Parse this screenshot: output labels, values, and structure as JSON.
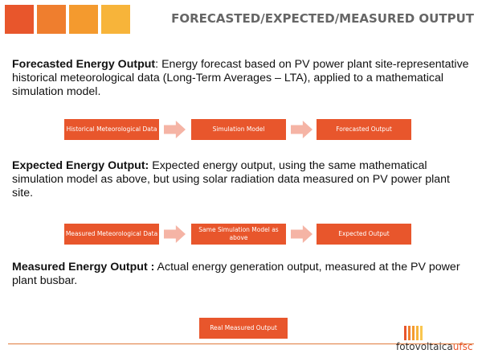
{
  "header": {
    "title": "FORECASTED/EXPECTED/MEASURED OUTPUT",
    "square_colors": [
      "#e8562c",
      "#ef7e2e",
      "#f49a2e",
      "#f7b43a"
    ]
  },
  "sections": [
    {
      "term": "Forecasted Energy Output",
      "separator": ": ",
      "text": "Energy forecast based on PV power plant site-representative historical meteorological data (Long-Term Averages – LTA), applied to a mathematical simulation model.",
      "flow": [
        "Historical Meteorological Data",
        "Simulation Model",
        "Forecasted Output"
      ]
    },
    {
      "term": "Expected Energy Output:",
      "separator": " ",
      "text": "Expected energy output, using the same mathematical simulation model as above, but using solar radiation data measured on PV power plant site.",
      "flow": [
        "Measured Meteorological Data",
        "Same Simulation Model as above",
        "Expected Output"
      ]
    },
    {
      "term": "Measured Energy Output :",
      "separator": " ",
      "text": "Actual energy generation output, measured at the PV power plant busbar.",
      "flow": [
        "Real Measured Output"
      ]
    }
  ],
  "colors": {
    "box": "#e8562c",
    "arrow": "#f5b4a5",
    "divider": "#e07a3c",
    "title": "#666666"
  },
  "logo": {
    "text_main": "fotovoltaica",
    "text_accent": "ufsc"
  }
}
